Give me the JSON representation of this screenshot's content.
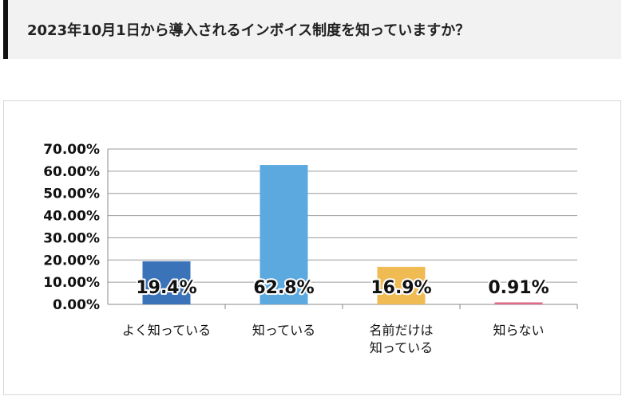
{
  "question": "2023年10月1日から導入されるインボイス制度を知っていますか？",
  "chart_data": {
    "type": "bar",
    "categories": [
      [
        "よく知っている"
      ],
      [
        "知っている"
      ],
      [
        "名前だけは",
        "知っている"
      ],
      [
        "知らない"
      ]
    ],
    "values": [
      19.4,
      62.8,
      16.9,
      0.91
    ],
    "data_labels": [
      "19.4%",
      "62.8%",
      "16.9%",
      "0.91%"
    ],
    "colors": [
      "#3a73b8",
      "#5ba9de",
      "#f0bb52",
      "#e06a88"
    ],
    "ylim": [
      0,
      70
    ],
    "yticks": [
      "0.00%",
      "10.00%",
      "20.00%",
      "30.00%",
      "40.00%",
      "50.00%",
      "60.00%",
      "70.00%"
    ],
    "grid": true,
    "legend": "none"
  }
}
